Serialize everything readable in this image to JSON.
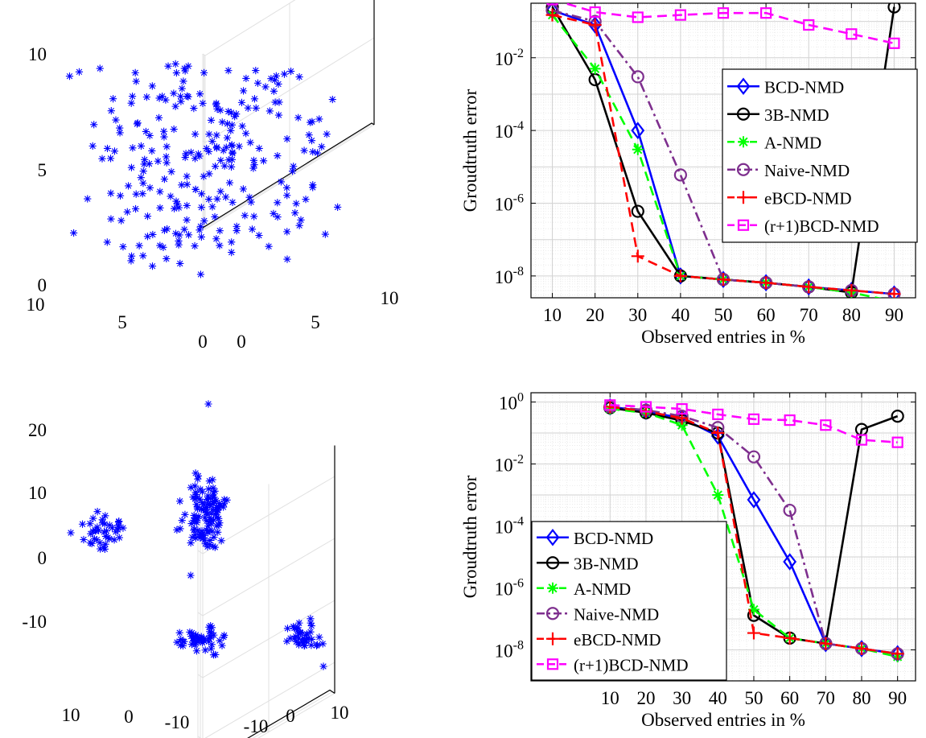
{
  "chart_data": [
    {
      "type": "scatter",
      "projection": "3d",
      "marker": "asterisk",
      "color": "#0000ff",
      "grid": true,
      "xlim": [
        0,
        10
      ],
      "ylim": [
        0,
        10
      ],
      "zlim": [
        0,
        10
      ],
      "x_ticks": [
        "10",
        "5",
        "0"
      ],
      "y_ticks": [
        "0",
        "5",
        "10"
      ],
      "z_ticks": [
        "10",
        "5",
        "0"
      ],
      "distribution": "uniform points in a 10x10x10 cube (about 250 points)"
    },
    {
      "type": "line",
      "yscale": "log",
      "grid": true,
      "legend": "inside-right",
      "xlabel": "Observed entries in %",
      "ylabel": "Groudtruth error",
      "x": [
        10,
        20,
        30,
        40,
        50,
        60,
        70,
        80,
        90
      ],
      "xlim": [
        5,
        95
      ],
      "ylim_exp": [
        -8.6,
        -0.5
      ],
      "y_ticks": [
        {
          "base": "10",
          "exp": "-2",
          "value": -2
        },
        {
          "base": "10",
          "exp": "-4",
          "value": -4
        },
        {
          "base": "10",
          "exp": "-6",
          "value": -6
        },
        {
          "base": "10",
          "exp": "-8",
          "value": -8
        }
      ],
      "series": [
        {
          "name": "BCD-NMD",
          "color": "#0000ff",
          "dash": "",
          "marker": "diamond",
          "values": [
            0.2,
            0.08,
            0.0001,
            1e-08,
            8e-09,
            6.5e-09,
            5e-09,
            4e-09,
            3.2e-09
          ]
        },
        {
          "name": "3B-NMD",
          "color": "#000000",
          "dash": "",
          "marker": "circle",
          "values": [
            0.25,
            0.0025,
            6e-07,
            1e-08,
            8e-09,
            6.5e-09,
            5e-09,
            3.5e-09,
            0.25
          ]
        },
        {
          "name": "A-NMD",
          "color": "#00ff00",
          "dash": "12,7",
          "marker": "asterisk",
          "values": [
            0.15,
            0.005,
            3e-05,
            1e-08,
            8e-09,
            6.5e-09,
            5e-09,
            3.5e-09,
            2e-09
          ]
        },
        {
          "name": "Naive-NMD",
          "color": "#7e2f8e",
          "dash": "12,5,3,5",
          "marker": "circle",
          "values": [
            0.2,
            0.1,
            0.003,
            6e-06,
            8e-09,
            6.5e-09,
            5e-09,
            4e-09,
            3.2e-09
          ]
        },
        {
          "name": "eBCD-NMD",
          "color": "#ff0000",
          "dash": "12,7",
          "marker": "plus",
          "values": [
            0.15,
            0.08,
            3.5e-08,
            1e-08,
            8e-09,
            6.5e-09,
            5e-09,
            4e-09,
            3.2e-09
          ]
        },
        {
          "name": "(r+1)BCD-NMD",
          "color": "#ff00ff",
          "dash": "12,7",
          "marker": "square",
          "values": [
            0.4,
            0.18,
            0.13,
            0.15,
            0.17,
            0.17,
            0.08,
            0.045,
            0.025
          ]
        }
      ]
    },
    {
      "type": "scatter",
      "projection": "3d",
      "marker": "asterisk",
      "color": "#0000ff",
      "grid": true,
      "xlim": [
        -10,
        10
      ],
      "ylim": [
        -10,
        10
      ],
      "zlim": [
        -15,
        22
      ],
      "x_ticks": [
        "10",
        "0",
        "-10"
      ],
      "y_ticks": [
        "-10",
        "0",
        "10"
      ],
      "z_ticks": [
        "20",
        "10",
        "0",
        "-10"
      ],
      "distribution": "points clustered in four groups"
    },
    {
      "type": "line",
      "yscale": "log",
      "grid": true,
      "legend": "inside-bottom-left",
      "xlabel": "Observed entries in %",
      "ylabel": "Groudtruth error",
      "x": [
        10,
        20,
        30,
        40,
        50,
        60,
        70,
        80,
        90
      ],
      "xlim": [
        -12,
        95
      ],
      "ylim_exp": [
        -9.0,
        0.3
      ],
      "y_ticks": [
        {
          "base": "10",
          "exp": "0",
          "value": 0
        },
        {
          "base": "10",
          "exp": "-2",
          "value": -2
        },
        {
          "base": "10",
          "exp": "-4",
          "value": -4
        },
        {
          "base": "10",
          "exp": "-6",
          "value": -6
        },
        {
          "base": "10",
          "exp": "-8",
          "value": -8
        }
      ],
      "series": [
        {
          "name": "BCD-NMD",
          "color": "#0000ff",
          "dash": "",
          "marker": "diamond",
          "values": [
            0.7,
            0.5,
            0.3,
            0.08,
            0.0007,
            7e-06,
            1.6e-08,
            1.1e-08,
            7.5e-09
          ]
        },
        {
          "name": "3B-NMD",
          "color": "#000000",
          "dash": "",
          "marker": "circle",
          "values": [
            0.65,
            0.45,
            0.25,
            0.1,
            1.3e-07,
            2.4e-08,
            1.6e-08,
            0.13,
            0.35
          ]
        },
        {
          "name": "A-NMD",
          "color": "#00ff00",
          "dash": "12,7",
          "marker": "asterisk",
          "values": [
            0.6,
            0.45,
            0.18,
            0.001,
            2e-07,
            2.4e-08,
            1.6e-08,
            1.1e-08,
            6e-09
          ]
        },
        {
          "name": "Naive-NMD",
          "color": "#7e2f8e",
          "dash": "12,5,3,5",
          "marker": "circle",
          "values": [
            0.7,
            0.55,
            0.35,
            0.15,
            0.017,
            0.00032,
            1.6e-08,
            1.1e-08,
            7.5e-09
          ]
        },
        {
          "name": "eBCD-NMD",
          "color": "#ff0000",
          "dash": "12,7",
          "marker": "plus",
          "values": [
            0.7,
            0.5,
            0.3,
            0.1,
            3.5e-08,
            2.4e-08,
            1.6e-08,
            1.1e-08,
            7.5e-09
          ]
        },
        {
          "name": "(r+1)BCD-NMD",
          "color": "#ff00ff",
          "dash": "12,7",
          "marker": "square",
          "values": [
            0.8,
            0.7,
            0.6,
            0.4,
            0.28,
            0.26,
            0.18,
            0.06,
            0.05
          ]
        }
      ]
    }
  ]
}
